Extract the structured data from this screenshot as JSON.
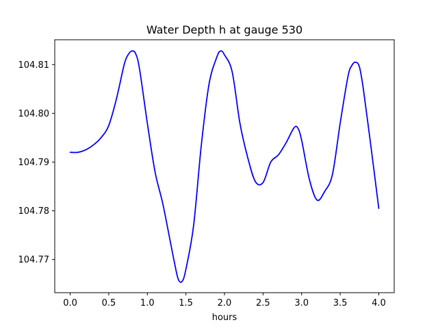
{
  "chart_data": {
    "type": "line",
    "title": "Water Depth h at gauge 530",
    "xlabel": "hours",
    "ylabel": "",
    "xlim": [
      -0.2,
      4.2
    ],
    "ylim": [
      104.7632,
      104.8151
    ],
    "x_ticks": [
      0.0,
      0.5,
      1.0,
      1.5,
      2.0,
      2.5,
      3.0,
      3.5,
      4.0
    ],
    "x_tick_labels": [
      "0.0",
      "0.5",
      "1.0",
      "1.5",
      "2.0",
      "2.5",
      "3.0",
      "3.5",
      "4.0"
    ],
    "y_ticks": [
      104.77,
      104.78,
      104.79,
      104.8,
      104.81
    ],
    "y_tick_labels": [
      "104.77",
      "104.78",
      "104.79",
      "104.80",
      "104.81"
    ],
    "grid": false,
    "series": [
      {
        "color": "#0000ff",
        "x": [
          0.0,
          0.1,
          0.2,
          0.3,
          0.4,
          0.5,
          0.6,
          0.7,
          0.75,
          0.8,
          0.85,
          0.9,
          1.0,
          1.1,
          1.2,
          1.3,
          1.35,
          1.4,
          1.45,
          1.5,
          1.6,
          1.7,
          1.8,
          1.9,
          1.95,
          2.0,
          2.1,
          2.2,
          2.3,
          2.4,
          2.5,
          2.6,
          2.7,
          2.8,
          2.9,
          2.95,
          3.0,
          3.1,
          3.2,
          3.3,
          3.4,
          3.5,
          3.6,
          3.65,
          3.7,
          3.75,
          3.8,
          3.9,
          4.0
        ],
        "y": [
          104.792,
          104.792,
          104.7925,
          104.7935,
          104.795,
          104.7975,
          104.803,
          104.81,
          104.812,
          104.8128,
          104.8122,
          104.809,
          104.798,
          104.788,
          104.7815,
          104.7735,
          104.7695,
          104.766,
          104.7655,
          104.768,
          104.777,
          104.7935,
          104.806,
          104.8115,
          104.8128,
          104.812,
          104.8085,
          104.798,
          104.791,
          104.786,
          104.7858,
          104.79,
          104.7915,
          104.794,
          104.797,
          104.797,
          104.7945,
          104.7865,
          104.7822,
          104.784,
          104.7875,
          104.798,
          104.8075,
          104.8098,
          104.8105,
          104.8095,
          104.805,
          104.793,
          104.7805
        ]
      }
    ]
  }
}
